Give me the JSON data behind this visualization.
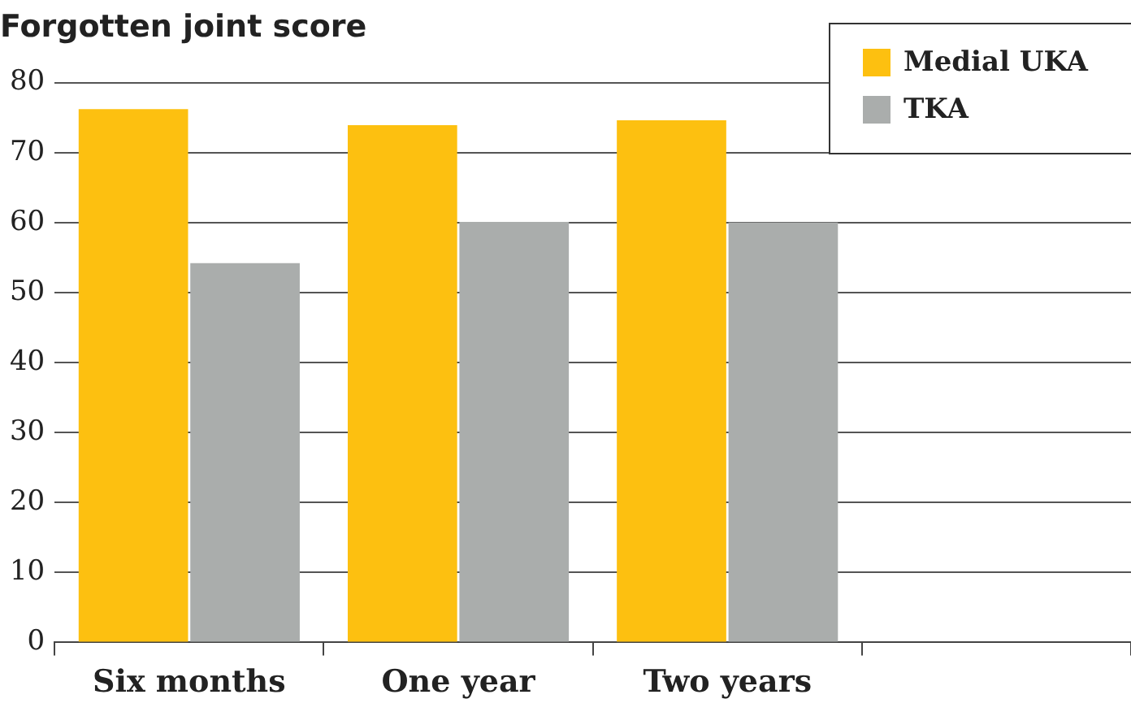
{
  "chart_data": {
    "type": "bar",
    "title": "Forgotten joint score",
    "categories": [
      "Six months",
      "One year",
      "Two years",
      null
    ],
    "series": [
      {
        "name": "Medial UKA",
        "color": "#fdc010",
        "values": [
          76.2,
          73.9,
          74.6,
          null
        ]
      },
      {
        "name": "TKA",
        "color": "#aaadac",
        "values": [
          54.2,
          60.1,
          60.0,
          null
        ]
      }
    ],
    "ylim": [
      0,
      80
    ],
    "yticks": [
      0,
      10,
      20,
      30,
      40,
      50,
      60,
      70,
      80
    ],
    "grid": "y",
    "legend": "top right"
  }
}
